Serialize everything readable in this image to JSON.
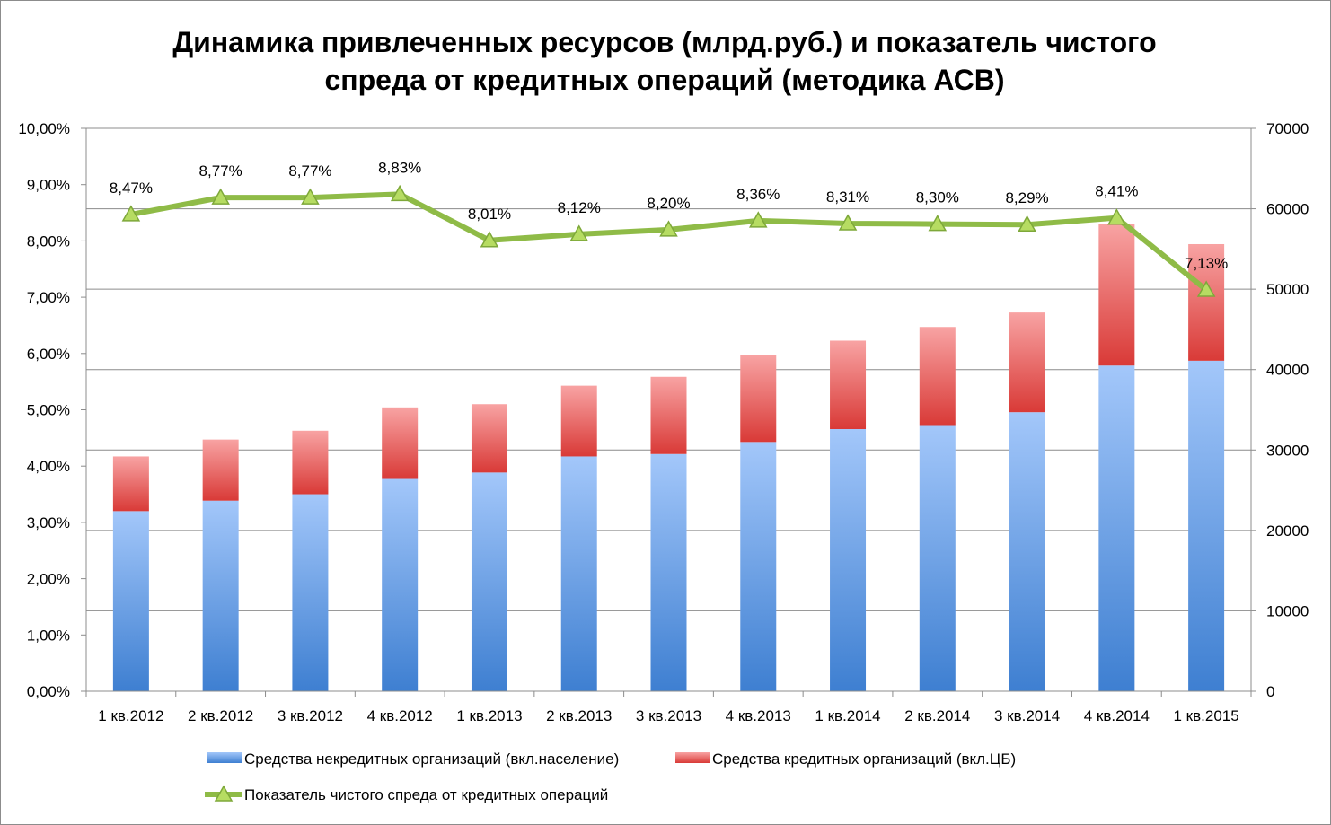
{
  "chart_data": {
    "type": "bar",
    "subtype": "stacked-bar-with-line-secondary-axis",
    "title_lines": [
      "Динамика привлеченных ресурсов (млрд.руб.) и показатель чистого",
      "спреда от кредитных операций (методика АСВ)"
    ],
    "categories": [
      "1 кв.2012",
      "2 кв.2012",
      "3 кв.2012",
      "4 кв.2012",
      "1 кв.2013",
      "2 кв.2013",
      "3 кв.2013",
      "4 кв.2013",
      "1 кв.2014",
      "2 кв.2014",
      "3 кв.2014",
      "4 кв.2014",
      "1 кв.2015"
    ],
    "left_axis": {
      "min": 0,
      "max": 10,
      "step": 1,
      "tick_labels": [
        "0,00%",
        "1,00%",
        "2,00%",
        "3,00%",
        "4,00%",
        "5,00%",
        "6,00%",
        "7,00%",
        "8,00%",
        "9,00%",
        "10,00%"
      ]
    },
    "right_axis": {
      "min": 0,
      "max": 70000,
      "step": 10000,
      "tick_labels": [
        "0",
        "10000",
        "20000",
        "30000",
        "40000",
        "50000",
        "60000",
        "70000"
      ]
    },
    "grid": true,
    "legend_position": "bottom",
    "bar_series": [
      {
        "name": "Средства некредитных организаций (вкл.население)",
        "axis": "right",
        "color": "#4f8fd8",
        "values": [
          22400,
          23700,
          24500,
          26400,
          27200,
          29200,
          29500,
          31000,
          32600,
          33100,
          34700,
          40500,
          41100
        ]
      },
      {
        "name": "Средства кредитных организаций (вкл.ЦБ)",
        "axis": "right",
        "color": "#e14c4c",
        "values": [
          6800,
          7600,
          7900,
          8900,
          8500,
          8800,
          9600,
          10800,
          11000,
          12200,
          12400,
          17600,
          14500
        ]
      }
    ],
    "line_series": {
      "name": "Показатель чистого спреда от кредитных операций",
      "axis": "left",
      "color": "#8fbb47",
      "values": [
        8.47,
        8.77,
        8.77,
        8.83,
        8.01,
        8.12,
        8.2,
        8.36,
        8.31,
        8.3,
        8.29,
        8.41,
        7.13
      ],
      "labels": [
        "8,47%",
        "8,77%",
        "8,77%",
        "8,83%",
        "8,01%",
        "8,12%",
        "8,20%",
        "8,36%",
        "8,31%",
        "8,30%",
        "8,29%",
        "8,41%",
        "7,13%"
      ]
    }
  }
}
